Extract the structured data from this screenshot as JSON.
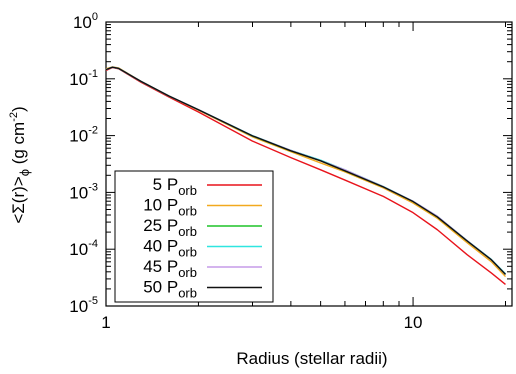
{
  "chart_data": {
    "type": "line",
    "xlabel": "Radius (stellar radii)",
    "ylabel_main": "<Σ(r)>",
    "ylabel_sub": "ϕ",
    "ylabel_unit": " (g cm",
    "ylabel_unit_sup": "-2",
    "ylabel_unit_close": ")",
    "xscale": "log",
    "yscale": "log",
    "xlim": [
      1,
      21
    ],
    "ylim": [
      1e-05,
      1
    ],
    "x_ticks": [
      {
        "value": 1,
        "label": "1"
      },
      {
        "value": 10,
        "label": "10"
      }
    ],
    "y_ticks": [
      {
        "value": 1,
        "base": "10",
        "exp": "0"
      },
      {
        "value": 0.1,
        "base": "10",
        "exp": "-1"
      },
      {
        "value": 0.01,
        "base": "10",
        "exp": "-2"
      },
      {
        "value": 0.001,
        "base": "10",
        "exp": "-3"
      },
      {
        "value": 0.0001,
        "base": "10",
        "exp": "-4"
      },
      {
        "value": 1e-05,
        "base": "10",
        "exp": "-5"
      }
    ],
    "legend_position": "bottom-left",
    "series": [
      {
        "name": "5",
        "name_sub": "orb",
        "name_prefix": "P",
        "color": "#e8141c",
        "x": [
          1,
          1.05,
          1.1,
          1.3,
          1.6,
          2,
          3,
          4,
          5,
          6,
          8,
          10,
          12,
          15,
          18,
          20
        ],
        "y": [
          0.14,
          0.158,
          0.15,
          0.087,
          0.048,
          0.026,
          0.008,
          0.0041,
          0.0025,
          0.00165,
          0.00085,
          0.00044,
          0.00022,
          8e-05,
          3.8e-05,
          2.4e-05
        ]
      },
      {
        "name": "10",
        "name_sub": "orb",
        "name_prefix": "P",
        "color": "#f2a91e",
        "x": [
          1,
          1.05,
          1.1,
          1.3,
          1.6,
          2,
          3,
          4,
          5,
          6,
          8,
          10,
          12,
          15,
          18,
          20
        ],
        "y": [
          0.15,
          0.162,
          0.155,
          0.09,
          0.05,
          0.028,
          0.0095,
          0.0052,
          0.0033,
          0.0023,
          0.0012,
          0.00065,
          0.00035,
          0.00013,
          6e-05,
          3.3e-05
        ]
      },
      {
        "name": "25",
        "name_sub": "orb",
        "name_prefix": "P",
        "color": "#1fc428",
        "x": [
          1,
          1.05,
          1.1,
          1.3,
          1.6,
          2,
          3,
          4,
          5,
          6,
          8,
          10,
          12,
          15,
          18,
          20
        ],
        "y": [
          0.145,
          0.16,
          0.152,
          0.09,
          0.05,
          0.0285,
          0.0098,
          0.0054,
          0.0036,
          0.0024,
          0.00125,
          0.00069,
          0.00037,
          0.00014,
          6.5e-05,
          3.6e-05
        ]
      },
      {
        "name": "40",
        "name_sub": "orb",
        "name_prefix": "P",
        "color": "#2fe6e0",
        "x": [
          1,
          1.05,
          1.1,
          1.3,
          1.6,
          2,
          3,
          4,
          5,
          6,
          8,
          10,
          12,
          15,
          18,
          20
        ],
        "y": [
          0.145,
          0.16,
          0.152,
          0.09,
          0.05,
          0.0287,
          0.01,
          0.0055,
          0.0037,
          0.0025,
          0.00127,
          0.0007,
          0.00038,
          0.000142,
          6.6e-05,
          3.7e-05
        ]
      },
      {
        "name": "45",
        "name_sub": "orb",
        "name_prefix": "P",
        "color": "#c59be8",
        "x": [
          1,
          1.05,
          1.1,
          1.3,
          1.6,
          2,
          3,
          4,
          5,
          6,
          8,
          10,
          12,
          15,
          18,
          20
        ],
        "y": [
          0.145,
          0.16,
          0.152,
          0.09,
          0.05,
          0.0286,
          0.0099,
          0.0055,
          0.0036,
          0.0025,
          0.00126,
          0.0007,
          0.00038,
          0.000141,
          6.5e-05,
          3.6e-05
        ]
      },
      {
        "name": "50",
        "name_sub": "orb",
        "name_prefix": "P",
        "color": "#111111",
        "x": [
          1,
          1.05,
          1.1,
          1.3,
          1.6,
          2,
          3,
          4,
          5,
          6,
          8,
          10,
          12,
          15,
          18,
          20
        ],
        "y": [
          0.145,
          0.16,
          0.152,
          0.09,
          0.05,
          0.0285,
          0.0099,
          0.0054,
          0.0036,
          0.0024,
          0.00125,
          0.00069,
          0.00037,
          0.00014,
          6.5e-05,
          3.6e-05
        ]
      }
    ]
  }
}
